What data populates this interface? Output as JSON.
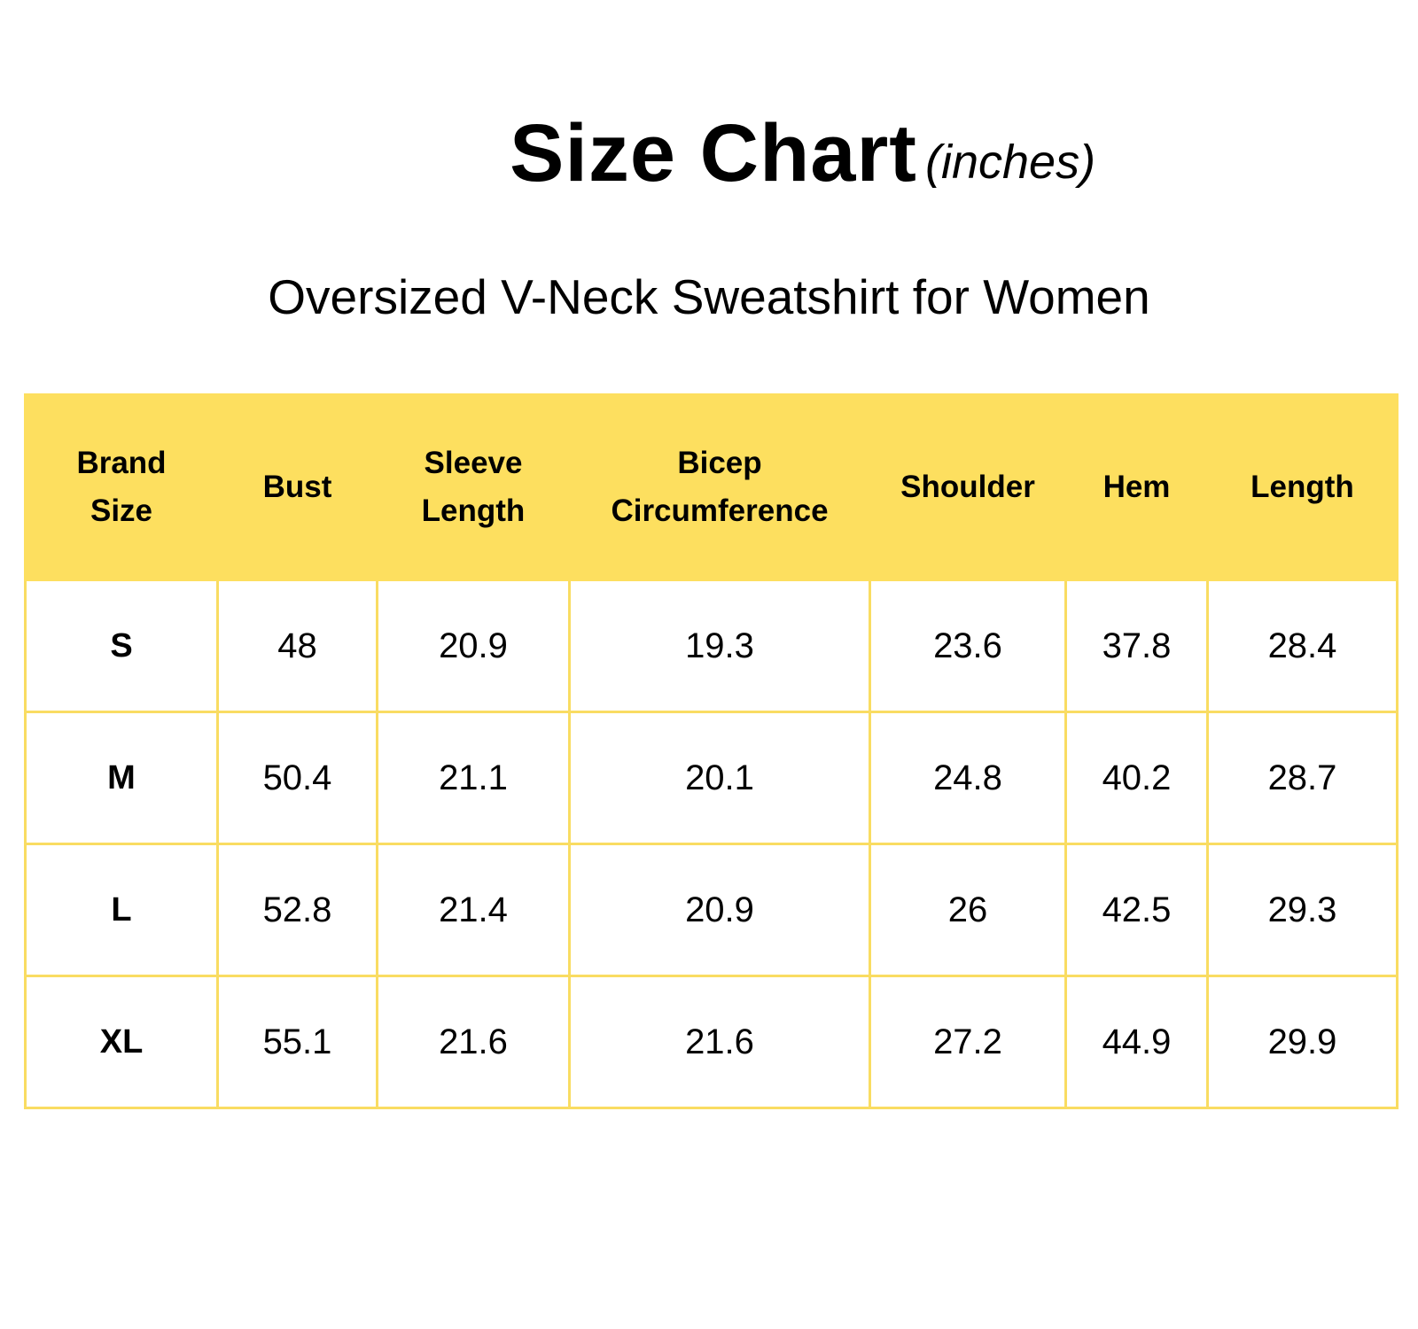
{
  "title": {
    "main": "Size Chart",
    "unit": "(inches)"
  },
  "subtitle": "Oversized V-Neck Sweatshirt for Women",
  "colors": {
    "header_background": "#fddf5f",
    "grid_lines": "#f9dc62",
    "text": "#000000",
    "background": "#ffffff"
  },
  "table": {
    "headers": [
      {
        "lines": [
          "Brand",
          "Size"
        ]
      },
      {
        "lines": [
          "Bust"
        ]
      },
      {
        "lines": [
          "Sleeve",
          "Length"
        ]
      },
      {
        "lines": [
          "Bicep",
          "Circumference"
        ]
      },
      {
        "lines": [
          "Shoulder"
        ]
      },
      {
        "lines": [
          "Hem"
        ]
      },
      {
        "lines": [
          "Length"
        ]
      }
    ],
    "rows": [
      [
        "S",
        "48",
        "20.9",
        "19.3",
        "23.6",
        "37.8",
        "28.4"
      ],
      [
        "M",
        "50.4",
        "21.1",
        "20.1",
        "24.8",
        "40.2",
        "28.7"
      ],
      [
        "L",
        "52.8",
        "21.4",
        "20.9",
        "26",
        "42.5",
        "29.3"
      ],
      [
        "XL",
        "55.1",
        "21.6",
        "21.6",
        "27.2",
        "44.9",
        "29.9"
      ]
    ]
  }
}
